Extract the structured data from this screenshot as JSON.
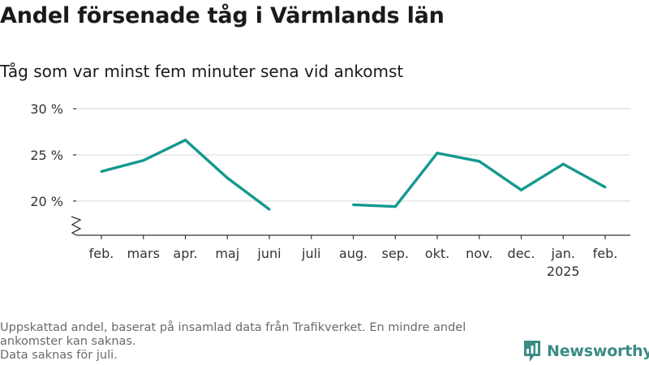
{
  "title": "Andel försenade tåg i Värmlands län",
  "subtitle": "Tåg som var minst fem minuter sena vid ankomst",
  "footer": {
    "line1": "Uppskattad andel, baserat på insamlad data från Trafikverket. En mindre andel ankomster kan saknas.",
    "line2": "Data saknas för juli."
  },
  "brand": {
    "name": "Newsworthy",
    "color": "#3a8c84"
  },
  "chart_data": {
    "type": "line",
    "categories": [
      "feb.",
      "mars",
      "apr.",
      "maj",
      "juni",
      "juli",
      "aug.",
      "sep.",
      "okt.",
      "nov.",
      "dec.",
      "jan.",
      "feb."
    ],
    "year_label": {
      "category_index": 11,
      "text": "2025"
    },
    "series": [
      {
        "values": [
          23.2,
          24.4,
          26.6,
          22.5,
          19.1,
          null,
          19.6,
          19.4,
          25.2,
          24.3,
          21.2,
          24.0,
          21.5
        ],
        "color": "#14998f"
      }
    ],
    "yticks": [
      {
        "value": 20,
        "label": "20 %"
      },
      {
        "value": 25,
        "label": "25 %"
      },
      {
        "value": 30,
        "label": "30 %"
      }
    ],
    "ylim": [
      16.3,
      30
    ],
    "axis_break": true,
    "grid": "horizontal",
    "legend": "none"
  }
}
